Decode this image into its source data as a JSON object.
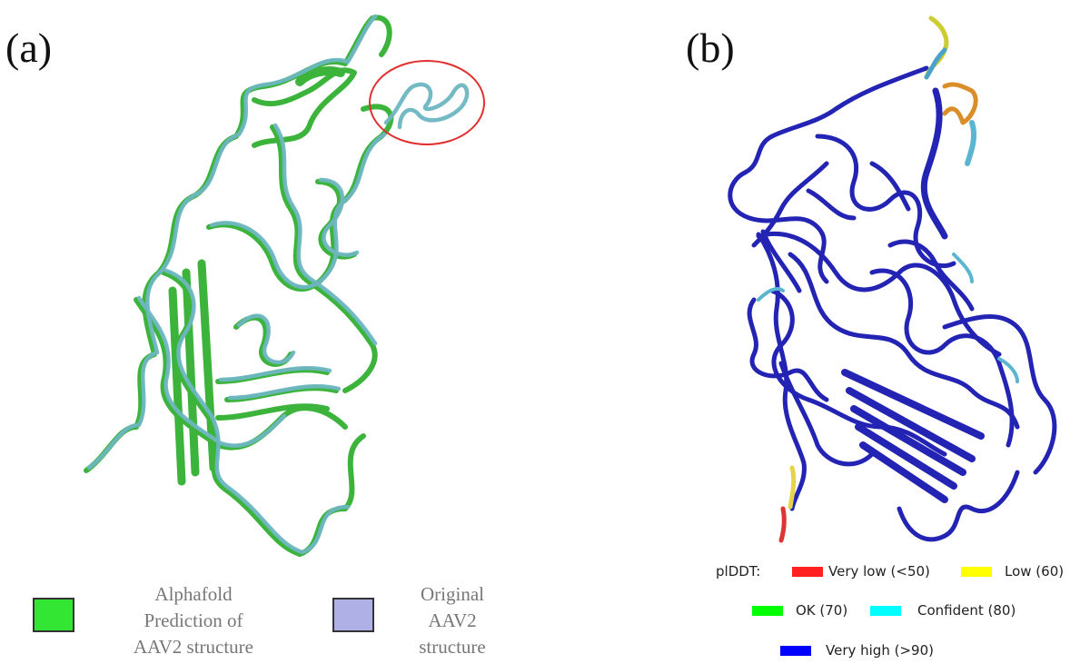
{
  "panel_a": {
    "label": "(a)",
    "legend": [
      {
        "lines": [
          "Alphafold",
          "Prediction of",
          "AAV2 structure"
        ],
        "color": "#33e633"
      },
      {
        "lines": [
          "Original",
          "AAV2",
          "structure"
        ],
        "color": "#aeb0e6"
      }
    ],
    "colors": {
      "prediction": "#3fbf3f",
      "original": "#6fb8c4",
      "highlight_circle": "#e03030"
    }
  },
  "panel_b": {
    "label": "(b)",
    "legend_title": "plDDT:",
    "legend": [
      {
        "label": "Very low (<50)",
        "color": "#ff2020"
      },
      {
        "label": "Low (60)",
        "color": "#ffff00"
      },
      {
        "label": "OK (70)",
        "color": "#00ff00"
      },
      {
        "label": "Confident (80)",
        "color": "#00ffff"
      },
      {
        "label": "Very high (>90)",
        "color": "#0000ff"
      }
    ],
    "colors": {
      "main": "#2020b0"
    }
  }
}
